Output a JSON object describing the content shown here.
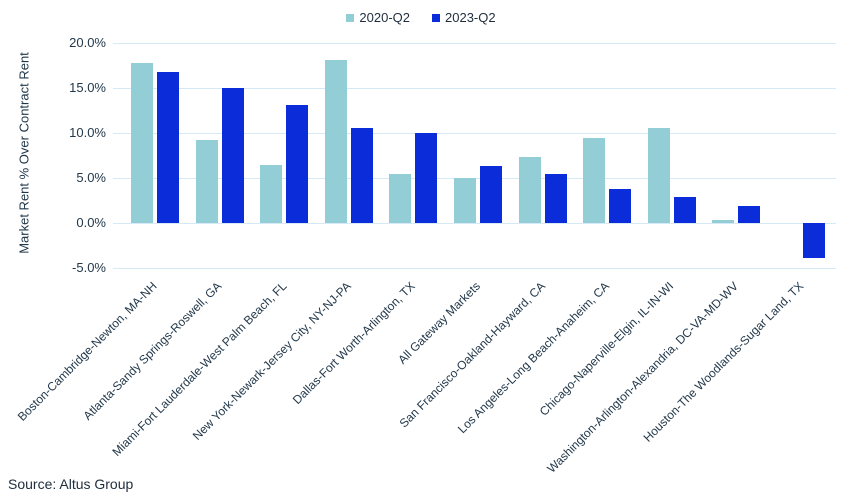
{
  "chart_data": {
    "type": "bar",
    "title": "",
    "xlabel": "",
    "ylabel": "Market Rent % Over Contract Rent",
    "categories": [
      "Boston-Cambridge-Newton, MA-NH",
      "Atlanta-Sandy Springs-Roswell, GA",
      "Miami-Fort Lauderdale-West Palm Beach, FL",
      "New York-Newark-Jersey City, NY-NJ-PA",
      "Dallas-Fort Worth-Arlington, TX",
      "All Gateway Markets",
      "San Francisco-Oakland-Hayward, CA",
      "Los Angeles-Long Beach-Anaheim, CA",
      "Chicago-Naperville-Elgin, IL-IN-WI",
      "Washington-Arlington-Alexandria, DC-VA-MD-WV",
      "Houston-The Woodlands-Sugar Land, TX"
    ],
    "series": [
      {
        "name": "2020-Q2",
        "color": "#93CDD5",
        "values": [
          17.8,
          9.2,
          6.5,
          18.1,
          5.5,
          5.0,
          7.3,
          9.4,
          10.6,
          0.3,
          0.0
        ]
      },
      {
        "name": "2023-Q2",
        "color": "#0A2CD9",
        "values": [
          16.8,
          15.0,
          13.1,
          10.6,
          10.0,
          6.3,
          5.5,
          3.8,
          2.9,
          1.9,
          -3.9
        ]
      }
    ],
    "ylim": [
      -5,
      20
    ],
    "yticks": [
      {
        "value": 20,
        "label": "20.0%"
      },
      {
        "value": 15,
        "label": "15.0%"
      },
      {
        "value": 10,
        "label": "10.0%"
      },
      {
        "value": 5,
        "label": "5.0%"
      },
      {
        "value": 0,
        "label": "0.0%"
      },
      {
        "value": -5,
        "label": "-5.0%"
      }
    ],
    "grid": true,
    "legend_position": "top",
    "gridline_color": "#D5EAF6"
  },
  "footer": {
    "source_note": "Source: Altus Group"
  }
}
